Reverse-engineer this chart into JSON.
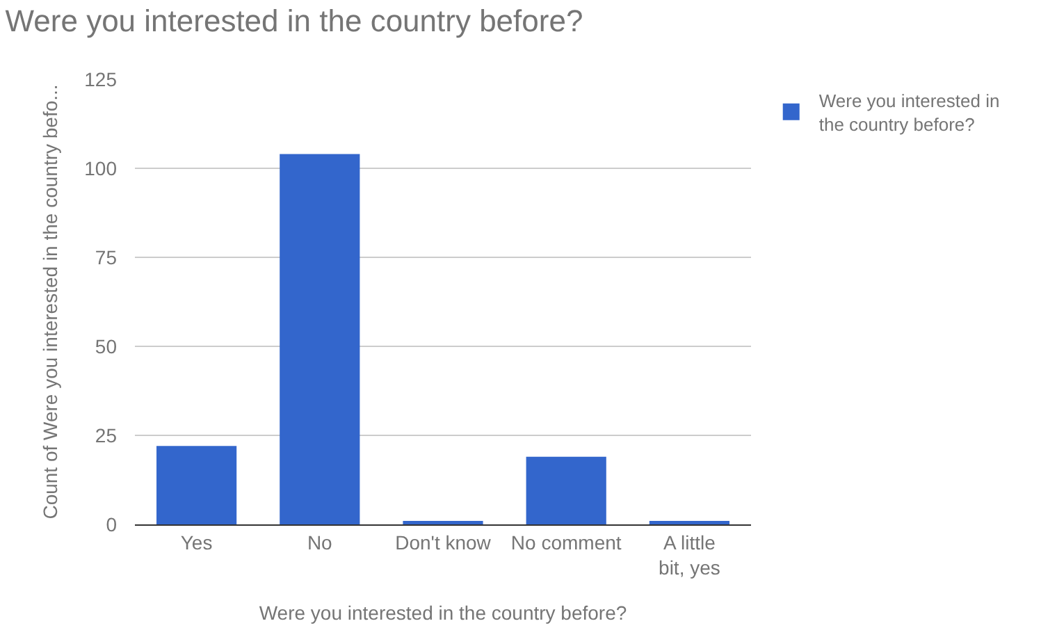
{
  "chart_data": {
    "type": "bar",
    "title": "Were you interested in the country before?",
    "xlabel": "Were you interested in the country before?",
    "ylabel": "Count of Were you interested in the country befo...",
    "categories": [
      "Yes",
      "No",
      "Don't know",
      "No comment",
      "A little bit, yes"
    ],
    "series": [
      {
        "name": "Were you interested in the country before?",
        "color": "#3366cc",
        "values": [
          22,
          104,
          1,
          19,
          1
        ]
      }
    ],
    "ylim": [
      0,
      125
    ],
    "yticks": [
      0,
      25,
      50,
      75,
      100,
      125
    ],
    "grid": "y",
    "legend": "top right"
  }
}
